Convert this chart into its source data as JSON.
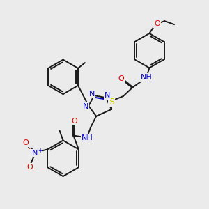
{
  "background_color": "#ebebeb",
  "colors": {
    "C": "#1a1a1a",
    "N": "#0000cc",
    "O": "#dd0000",
    "S": "#cccc00",
    "H": "#555555"
  },
  "lw": 1.4,
  "fs": 8.0
}
